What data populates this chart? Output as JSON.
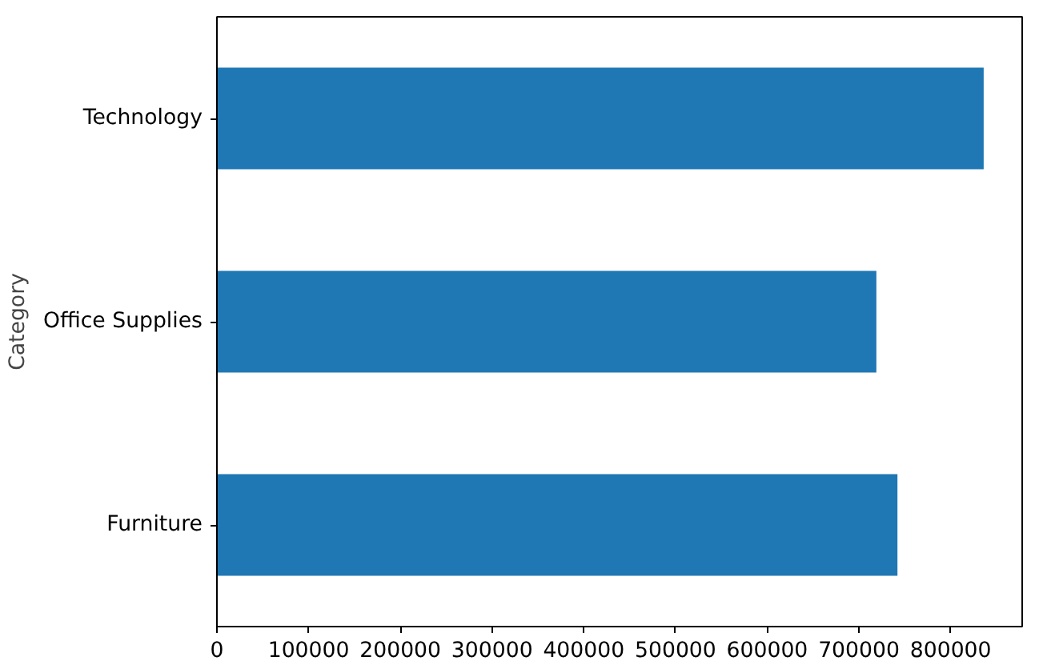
{
  "chart_data": {
    "type": "bar",
    "orientation": "horizontal",
    "ylabel": "Category",
    "categories": [
      "Technology",
      "Office Supplies",
      "Furniture"
    ],
    "values": [
      836000,
      719000,
      742000
    ],
    "color": "#1f77b4",
    "xlim": [
      0,
      878000
    ],
    "xticks": [
      0,
      100000,
      200000,
      300000,
      400000,
      500000,
      600000,
      700000,
      800000
    ],
    "grid": false
  }
}
